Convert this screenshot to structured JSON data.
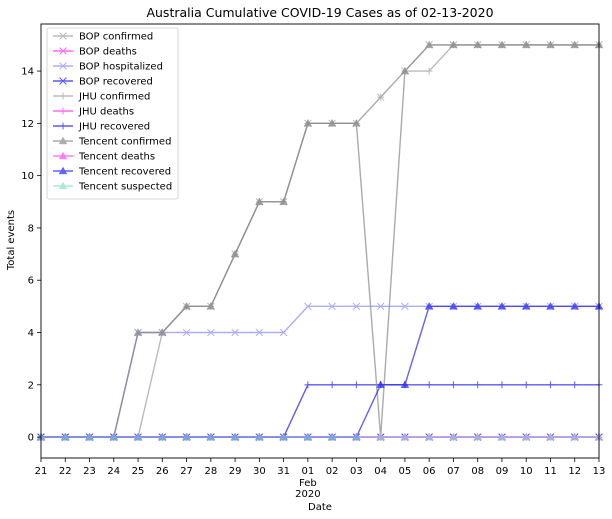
{
  "chart_data": {
    "type": "line",
    "title": "Australia Cumulative COVID-19 Cases as of 02-13-2020",
    "xlabel": "Date",
    "ylabel": "Total events",
    "x_ticks": [
      "21",
      "22",
      "23",
      "24",
      "25",
      "26",
      "27",
      "28",
      "29",
      "30",
      "31",
      "01",
      "02",
      "03",
      "04",
      "05",
      "06",
      "07",
      "08",
      "09",
      "10",
      "11",
      "12",
      "13"
    ],
    "x_tick_sublabels": {
      "01": [
        "Feb",
        "2020"
      ]
    },
    "xlim": [
      0,
      23
    ],
    "ylim": [
      -0.8,
      15.8
    ],
    "y_ticks": [
      0,
      2,
      4,
      6,
      8,
      10,
      12,
      14
    ],
    "y_tick_labels": [
      "0",
      "2",
      "4",
      "6",
      "8",
      "10",
      "12",
      "14"
    ],
    "grid": false,
    "legend_position": "top-left",
    "series": [
      {
        "name": "BOP confirmed",
        "color": "#aaaaaa",
        "marker": "x",
        "alpha": 0.8,
        "values": [
          0,
          0,
          0,
          0,
          4,
          4,
          5,
          5,
          7,
          9,
          9,
          12,
          12,
          12,
          13,
          14,
          15,
          15,
          15,
          15,
          15,
          15,
          15,
          15
        ]
      },
      {
        "name": "BOP deaths",
        "color": "#ff44ff",
        "marker": "x",
        "alpha": 0.8,
        "values": [
          0,
          0,
          0,
          0,
          0,
          0,
          0,
          0,
          0,
          0,
          0,
          0,
          0,
          0,
          0,
          0,
          0,
          0,
          0,
          0,
          0,
          0,
          0,
          0
        ]
      },
      {
        "name": "BOP hospitalized",
        "color": "#9999ff",
        "marker": "x",
        "alpha": 0.8,
        "values": [
          0,
          0,
          0,
          0,
          4,
          4,
          4,
          4,
          4,
          4,
          4,
          5,
          5,
          5,
          5,
          5,
          5,
          5,
          5,
          5,
          5,
          5,
          5,
          5
        ]
      },
      {
        "name": "BOP recovered",
        "color": "#3333ee",
        "marker": "x",
        "alpha": 0.8,
        "values": [
          0,
          0,
          0,
          0,
          0,
          0,
          0,
          0,
          0,
          0,
          0,
          0,
          0,
          0,
          0,
          0,
          0,
          0,
          0,
          0,
          0,
          0,
          0,
          0
        ]
      },
      {
        "name": "JHU confirmed",
        "color": "#aaaaaa",
        "marker": "+",
        "alpha": 0.8,
        "values": [
          0,
          0,
          0,
          0,
          0,
          4,
          5,
          5,
          7,
          9,
          9,
          12,
          12,
          12,
          13,
          14,
          14,
          15,
          15,
          15,
          15,
          15,
          15,
          15
        ]
      },
      {
        "name": "JHU deaths",
        "color": "#ff44ff",
        "marker": "+",
        "alpha": 0.8,
        "values": [
          0,
          0,
          0,
          0,
          0,
          0,
          0,
          0,
          0,
          0,
          0,
          0,
          0,
          0,
          0,
          0,
          0,
          0,
          0,
          0,
          0,
          0,
          0,
          0
        ]
      },
      {
        "name": "JHU recovered",
        "color": "#3333ee",
        "marker": "+",
        "alpha": 0.8,
        "values": [
          0,
          0,
          0,
          0,
          0,
          0,
          0,
          0,
          0,
          0,
          0,
          2,
          2,
          2,
          2,
          2,
          2,
          2,
          2,
          2,
          2,
          2,
          2,
          2
        ]
      },
      {
        "name": "Tencent confirmed",
        "color": "#888888",
        "marker": "^",
        "alpha": 0.7,
        "values": [
          0,
          0,
          0,
          0,
          4,
          4,
          5,
          5,
          7,
          9,
          9,
          12,
          12,
          12,
          0,
          14,
          15,
          15,
          15,
          15,
          15,
          15,
          15,
          15
        ]
      },
      {
        "name": "Tencent deaths",
        "color": "#ff44ff",
        "marker": "^",
        "alpha": 0.7,
        "values": [
          0,
          0,
          0,
          0,
          0,
          0,
          0,
          0,
          0,
          0,
          0,
          0,
          0,
          0,
          0,
          0,
          0,
          0,
          0,
          0,
          0,
          0,
          0,
          0
        ]
      },
      {
        "name": "Tencent recovered",
        "color": "#2222ee",
        "marker": "^",
        "alpha": 0.7,
        "values": [
          0,
          0,
          0,
          0,
          0,
          0,
          0,
          0,
          0,
          0,
          0,
          0,
          0,
          0,
          2,
          2,
          5,
          5,
          5,
          5,
          5,
          5,
          5,
          5
        ]
      },
      {
        "name": "Tencent suspected",
        "color": "#88ddcc",
        "marker": "^",
        "alpha": 0.7,
        "values": [
          0,
          0,
          0,
          0,
          0,
          0,
          0,
          0,
          0,
          0,
          0,
          0,
          0,
          0,
          0,
          0,
          0,
          0,
          0,
          0,
          0,
          0,
          0,
          0
        ]
      }
    ]
  }
}
